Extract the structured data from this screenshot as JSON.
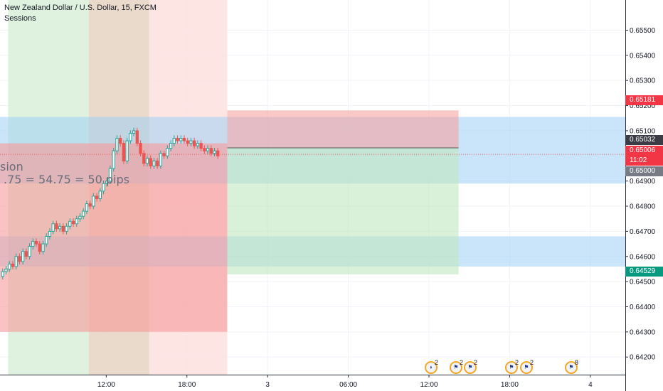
{
  "header": {
    "title": "New Zealand Dollar / U.S. Dollar, 15, FXCM",
    "indicator": "Sessions"
  },
  "annotation": {
    "line1": "sion",
    "line2": ".75 = 54.75 = 50 pips"
  },
  "price_labels": {
    "target": {
      "text": "0.65181",
      "color": "#f23645"
    },
    "close": {
      "text": "0.65032",
      "color": "#3c3c44"
    },
    "last": {
      "text": "0.65006",
      "color": "#f23645"
    },
    "countdown": {
      "text": "11:02",
      "color": "#f23645"
    },
    "level": {
      "text": "0.65000",
      "color": "#787b86"
    },
    "stop": {
      "text": "0.64529",
      "color": "#089981"
    }
  },
  "events": [
    {
      "icon": "nz-flag-icon",
      "count": "2"
    },
    {
      "icon": "us-flag-icon",
      "count": "2"
    },
    {
      "icon": "us-flag-icon",
      "count": "2"
    },
    {
      "icon": "us-flag-icon",
      "count": "2"
    },
    {
      "icon": "us-flag-icon",
      "count": "2"
    },
    {
      "icon": "us-flag-icon",
      "count": "8"
    }
  ],
  "colors": {
    "up": "#26a69a",
    "down": "#ef5350",
    "session_green": "#d9f0d9",
    "session_tan": "#e6d3c2",
    "session_pink": "#fde0df",
    "zone_blue": "#9fd0f5",
    "zone_red": "#f79a9a",
    "zone_green": "#bfe6bf"
  },
  "chart_data": {
    "type": "candlestick",
    "title": "New Zealand Dollar / U.S. Dollar, 15, FXCM",
    "y_ticks": [
      0.642,
      0.643,
      0.644,
      0.645,
      0.646,
      0.647,
      0.648,
      0.649,
      0.65,
      0.651,
      0.652,
      0.653,
      0.654,
      0.655
    ],
    "y_tick_labels": [
      "0.64200",
      "0.64300",
      "0.64400",
      "0.64500",
      "0.64600",
      "0.64700",
      "0.64800",
      "0.64900",
      "0.65000",
      "0.65100",
      "0.65200",
      "0.65300",
      "0.65400",
      "0.65500"
    ],
    "ylim": [
      0.6413,
      0.6562
    ],
    "x_ticks": [
      "12:00",
      "18:00",
      "3",
      "06:00",
      "12:00",
      "18:00",
      "4"
    ],
    "x_tick_hours": [
      12,
      18,
      24,
      30,
      36,
      42,
      48
    ],
    "xlim_hours": [
      4.1,
      50.6
    ],
    "sessions": [
      {
        "start": 4.7,
        "end": 10.7,
        "type": "green"
      },
      {
        "start": 10.7,
        "end": 15.2,
        "type": "tan"
      },
      {
        "start": 15.2,
        "end": 21.0,
        "type": "pink"
      }
    ],
    "zones": [
      {
        "type": "blue",
        "x_start": 4.1,
        "x_end": 50.6,
        "y_low": 0.6489,
        "y_high": 0.65155
      },
      {
        "type": "blue",
        "x_start": 4.1,
        "x_end": 50.6,
        "y_low": 0.6456,
        "y_high": 0.6468
      },
      {
        "type": "red_position",
        "x_start": 4.1,
        "x_end": 21.0,
        "y_low": 0.643,
        "y_high": 0.6505
      },
      {
        "type": "target",
        "x_start": 21.0,
        "x_end": 38.2,
        "y_low": 0.65032,
        "y_high": 0.65181
      },
      {
        "type": "stop",
        "x_start": 21.0,
        "x_end": 38.2,
        "y_low": 0.64529,
        "y_high": 0.65032
      }
    ],
    "hlines": [
      {
        "y": 0.65032,
        "x_start": 21.0,
        "x_end": 38.2,
        "style": "solid"
      },
      {
        "y": 0.65006,
        "x_start": 4.1,
        "x_end": 50.6,
        "style": "dotted"
      }
    ],
    "candles_close": [
      0.6454,
      0.6455,
      0.6457,
      0.6456,
      0.646,
      0.6458,
      0.6462,
      0.646,
      0.6464,
      0.6466,
      0.6465,
      0.6462,
      0.6465,
      0.6468,
      0.647,
      0.6473,
      0.6471,
      0.6472,
      0.647,
      0.6472,
      0.6474,
      0.6473,
      0.6475,
      0.6476,
      0.6478,
      0.6481,
      0.648,
      0.6484,
      0.6483,
      0.6486,
      0.6489,
      0.649,
      0.6495,
      0.6502,
      0.6507,
      0.6505,
      0.6498,
      0.6506,
      0.6509,
      0.651,
      0.6505,
      0.6501,
      0.6497,
      0.6499,
      0.6496,
      0.6498,
      0.6496,
      0.6501,
      0.65,
      0.6503,
      0.6505,
      0.6507,
      0.6506,
      0.6507,
      0.6506,
      0.6505,
      0.6506,
      0.6504,
      0.6505,
      0.6503,
      0.6502,
      0.6503,
      0.6501,
      0.6502,
      0.65
    ],
    "candle_start_hour": 4.3,
    "candle_interval_hours": 0.25
  }
}
